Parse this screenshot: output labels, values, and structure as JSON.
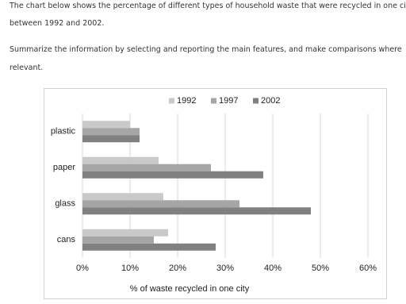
{
  "prompt": {
    "lines": [
      "The chart below shows the percentage of different types of household waste that were recycled in one city",
      "between 1992 and 2002.",
      "Summarize the information by selecting and reporting the main features, and make comparisons where",
      "relevant."
    ]
  },
  "chart_data": {
    "type": "bar",
    "orientation": "horizontal",
    "categories": [
      "plastic",
      "paper",
      "glass",
      "cans"
    ],
    "series": [
      {
        "name": "1992",
        "color": "#c9c9c9",
        "values": [
          10,
          16,
          17,
          18
        ]
      },
      {
        "name": "1997",
        "color": "#a6a6a6",
        "values": [
          12,
          27,
          33,
          15
        ]
      },
      {
        "name": "2002",
        "color": "#808080",
        "values": [
          12,
          38,
          48,
          28
        ]
      }
    ],
    "xlabel": "% of waste recycled in one city",
    "xlim": [
      0,
      60
    ],
    "xticks": [
      {
        "value": 0,
        "label": "0%"
      },
      {
        "value": 10,
        "label": "10%"
      },
      {
        "value": 20,
        "label": "20%"
      },
      {
        "value": 30,
        "label": "30%"
      },
      {
        "value": 40,
        "label": "40%"
      },
      {
        "value": 50,
        "label": "50%"
      },
      {
        "value": 60,
        "label": "60%"
      }
    ],
    "grid": true,
    "legend": "top"
  }
}
